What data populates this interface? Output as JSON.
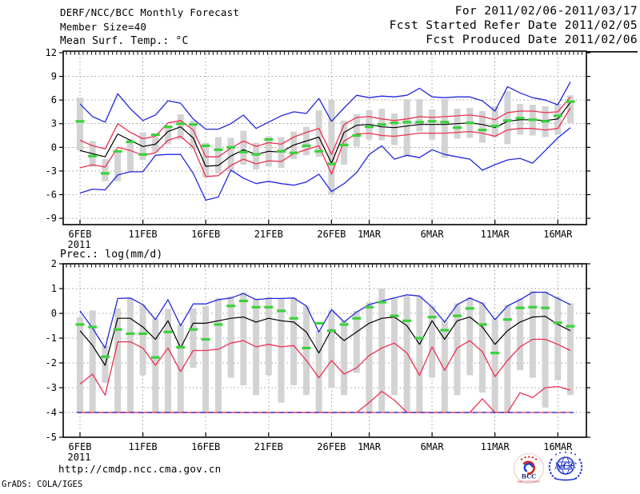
{
  "header": {
    "title": "DERF/NCC/BCC Monthly Forecast",
    "member_size": "Member Size=40",
    "for_range": "For 2011/02/06-2011/03/17",
    "fcst_started": "Fcst Started Refer Date 2011/02/05",
    "fcst_produced": "Fcst Produced Date 2011/02/06"
  },
  "footer": {
    "url": "http://cmdp.ncc.cma.gov.cn",
    "credit": "GrADS: COLA/IGES",
    "logo_left_text": "BCC",
    "logo_left_subtext": "BEIJING CLIMATE CENTER",
    "logo_right_text": "NCC"
  },
  "colors": {
    "blue": "#2228dd",
    "red": "#ec3150",
    "green": "#3bd23b",
    "black": "#000000",
    "bar": "#d3d3d3",
    "grid": "#9a9a9a",
    "frame": "#000000"
  },
  "chart_data": [
    {
      "id": "temp",
      "type": "line",
      "title": "Mean Surf. Temp.: °C",
      "ylabel": "°C",
      "n_points": 40,
      "x_range": "2011/02/06 - 2011/03/17",
      "x_ticks": [
        {
          "pos": 0,
          "label": "6FEB",
          "sub": "2011"
        },
        {
          "pos": 5,
          "label": "11FEB"
        },
        {
          "pos": 10,
          "label": "16FEB"
        },
        {
          "pos": 15,
          "label": "21FEB"
        },
        {
          "pos": 20,
          "label": "26FEB"
        },
        {
          "pos": 23,
          "label": "1MAR"
        },
        {
          "pos": 28,
          "label": "6MAR"
        },
        {
          "pos": 33,
          "label": "11MAR"
        },
        {
          "pos": 38,
          "label": "16MAR"
        }
      ],
      "ylim": [
        -9.8,
        12.2
      ],
      "yticks": [
        12,
        9,
        6,
        3,
        0,
        -3,
        -6,
        -9
      ],
      "grid": true,
      "legend": "none",
      "series": [
        {
          "id": "spread-bar",
          "name": "ensemble spread bar",
          "type": "bar",
          "color": "#d3d3d3",
          "hi": [
            6.3,
            0.8,
            -1.5,
            -0.5,
            1.0,
            1.9,
            1.3,
            2.8,
            4.2,
            3.4,
            0.6,
            1.3,
            1.2,
            2.1,
            0.6,
            1.4,
            1.3,
            2.0,
            2.6,
            4.7,
            6.0,
            3.4,
            4.2,
            4.7,
            4.9,
            4.3,
            6.1,
            6.1,
            4.8,
            6.1,
            4.9,
            5.0,
            4.6,
            5.2,
            7.1,
            5.5,
            5.4,
            5.2,
            5.5,
            6.6
          ],
          "lo": [
            -0.4,
            -2.5,
            -4.3,
            -4.3,
            -3.1,
            -1.6,
            -0.6,
            0.4,
            1.0,
            -0.2,
            -3.8,
            -3.3,
            -3.0,
            -2.2,
            -2.8,
            -2.4,
            -2.6,
            -1.5,
            -1.0,
            -1.2,
            -6.0,
            -2.2,
            0.1,
            1.0,
            0.9,
            0.3,
            -1.2,
            2.0,
            1.0,
            -1.3,
            1.1,
            1.2,
            0.6,
            1.3,
            0.4,
            1.6,
            1.5,
            1.3,
            1.6,
            3.1
          ]
        },
        {
          "id": "ens-max",
          "name": "ensemble max",
          "type": "line",
          "color": "#2228dd",
          "values": [
            5.5,
            3.9,
            3.2,
            6.8,
            4.9,
            3.4,
            4.1,
            5.9,
            5.6,
            3.6,
            2.3,
            2.3,
            3.0,
            4.1,
            2.4,
            3.2,
            4.0,
            4.5,
            4.3,
            6.2,
            3.3,
            5.0,
            6.6,
            6.3,
            6.5,
            6.4,
            6.6,
            7.5,
            6.4,
            6.3,
            6.4,
            6.4,
            5.9,
            4.6,
            7.7,
            6.9,
            6.3,
            6.0,
            5.4,
            8.3
          ]
        },
        {
          "id": "ens-min",
          "name": "ensemble min",
          "type": "line",
          "color": "#2228dd",
          "values": [
            -5.8,
            -5.3,
            -5.4,
            -3.5,
            -3.1,
            -3.1,
            -1.0,
            -0.9,
            -0.9,
            -3.3,
            -6.7,
            -6.3,
            -2.9,
            -3.9,
            -4.6,
            -4.3,
            -4.6,
            -4.8,
            -4.4,
            -3.4,
            -5.6,
            -4.6,
            -3.2,
            -0.9,
            0.2,
            -1.5,
            -1.0,
            -1.3,
            -0.3,
            -0.9,
            -1.2,
            -1.5,
            -2.9,
            -2.2,
            -1.6,
            -1.4,
            -2.0,
            -0.4,
            1.2,
            2.5
          ]
        },
        {
          "id": "upper-quartile",
          "name": "upper quartile",
          "type": "line",
          "color": "#ec3150",
          "values": [
            0.9,
            0.2,
            -0.2,
            3.0,
            1.9,
            1.1,
            1.4,
            3.1,
            3.4,
            2.2,
            -1.2,
            -1.2,
            -0.1,
            0.8,
            0.1,
            0.6,
            0.4,
            1.3,
            1.9,
            2.4,
            -0.9,
            2.9,
            3.8,
            3.9,
            3.6,
            3.4,
            3.6,
            3.9,
            3.8,
            3.9,
            4.0,
            4.1,
            3.9,
            3.5,
            4.4,
            4.6,
            4.6,
            4.4,
            4.5,
            6.4
          ]
        },
        {
          "id": "lower-quartile",
          "name": "lower quartile",
          "type": "line",
          "color": "#ec3150",
          "values": [
            -2.6,
            -2.2,
            -2.5,
            0.0,
            -0.4,
            -1.0,
            -0.7,
            0.9,
            1.4,
            0.0,
            -3.7,
            -3.6,
            -2.3,
            -1.5,
            -2.1,
            -1.7,
            -1.8,
            -0.8,
            -0.3,
            0.2,
            -3.4,
            0.8,
            1.7,
            1.8,
            1.5,
            1.4,
            1.6,
            1.8,
            1.8,
            1.8,
            1.9,
            2.0,
            1.8,
            1.4,
            2.2,
            2.4,
            2.4,
            2.2,
            2.4,
            5.0
          ]
        },
        {
          "id": "ens-mean",
          "name": "ensemble mean",
          "type": "line",
          "color": "#000000",
          "width": 1.2,
          "values": [
            -0.4,
            -0.8,
            -1.2,
            1.7,
            0.9,
            0.1,
            0.4,
            2.0,
            2.6,
            1.2,
            -2.4,
            -2.3,
            -1.1,
            -0.3,
            -0.9,
            -0.5,
            -0.6,
            0.3,
            0.8,
            1.3,
            -2.0,
            1.9,
            2.8,
            2.9,
            2.6,
            2.5,
            2.7,
            2.9,
            2.9,
            2.9,
            3.0,
            3.1,
            2.9,
            2.5,
            3.3,
            3.5,
            3.5,
            3.4,
            3.6,
            5.7
          ]
        },
        {
          "id": "obs",
          "name": "observation",
          "type": "dash",
          "color": "#3bd23b",
          "values": [
            3.3,
            -1.1,
            -3.3,
            -0.5,
            0.7,
            -0.9,
            1.6,
            2.6,
            3.0,
            2.9,
            0.2,
            -0.3,
            0.0,
            -0.6,
            -0.9,
            1.0,
            -0.5,
            -0.7,
            0.2,
            -0.5,
            -2.1,
            0.3,
            1.5,
            2.6,
            2.9,
            3.1,
            3.2,
            3.2,
            3.3,
            3.2,
            2.5,
            3.1,
            2.2,
            2.7,
            3.4,
            3.7,
            3.5,
            3.3,
            4.0,
            5.8
          ]
        }
      ]
    },
    {
      "id": "prec",
      "type": "line",
      "title": "Prec.: log(mm/d)",
      "ylabel": "log(mm/d)",
      "n_points": 40,
      "x_range": "2011/02/06 - 2011/03/17",
      "x_ticks": [
        {
          "pos": 0,
          "label": "6FEB",
          "sub": "2011"
        },
        {
          "pos": 5,
          "label": "11FEB"
        },
        {
          "pos": 10,
          "label": "16FEB"
        },
        {
          "pos": 15,
          "label": "21FEB"
        },
        {
          "pos": 20,
          "label": "26FEB"
        },
        {
          "pos": 23,
          "label": "1MAR"
        },
        {
          "pos": 28,
          "label": "6MAR"
        },
        {
          "pos": 33,
          "label": "11MAR"
        },
        {
          "pos": 38,
          "label": "16MAR"
        }
      ],
      "ylim": [
        -5,
        2
      ],
      "yticks": [
        2,
        1,
        0,
        -1,
        -2,
        -3,
        -4,
        -5
      ],
      "grid": true,
      "legend": "none",
      "series": [
        {
          "id": "spread-bar",
          "name": "ensemble spread bar",
          "type": "bar",
          "color": "#d3d3d3",
          "hi": [
            -0.15,
            0.12,
            -1.3,
            0.2,
            0.62,
            0.35,
            -0.2,
            0.18,
            -0.45,
            0.2,
            0.3,
            0.62,
            0.68,
            0.85,
            0.6,
            0.65,
            0.62,
            0.65,
            0.3,
            -0.7,
            0.12,
            -0.3,
            0.1,
            0.45,
            1.0,
            0.6,
            0.7,
            0.68,
            0.3,
            -0.3,
            0.4,
            0.65,
            0.45,
            -0.2,
            0.35,
            0.6,
            0.9,
            0.88,
            0.65,
            0.4
          ],
          "lo": [
            -4,
            -4,
            -2.8,
            -4,
            -4,
            -2.5,
            -4,
            -4,
            -4,
            -2.2,
            -4,
            -4,
            -2.6,
            -2.9,
            -3.3,
            -2.5,
            -3.6,
            -2.9,
            -3.3,
            -4,
            -3.0,
            -3.3,
            -2.4,
            -4,
            -4,
            -3.3,
            -4,
            -4,
            -2.6,
            -4,
            -3.3,
            -2.5,
            -3.2,
            -4,
            -4,
            -2.3,
            -2.6,
            -3.8,
            -2.7,
            -3.3
          ]
        },
        {
          "id": "min-floor",
          "name": "ensemble min (clipped at -4)",
          "type": "hline",
          "value": -4,
          "dashed": false,
          "color": "#ec3150"
        },
        {
          "id": "ens-max",
          "name": "ensemble max",
          "type": "line",
          "color": "#2228dd",
          "values": [
            0.1,
            -0.6,
            -1.4,
            0.6,
            0.62,
            0.35,
            -0.25,
            0.55,
            -0.5,
            0.38,
            0.38,
            0.55,
            0.62,
            0.8,
            0.55,
            0.6,
            0.6,
            0.62,
            0.3,
            -0.75,
            0.15,
            -0.35,
            0.05,
            0.35,
            0.5,
            0.62,
            0.75,
            0.7,
            0.25,
            -0.35,
            0.35,
            0.62,
            0.4,
            -0.25,
            0.3,
            0.55,
            0.85,
            0.85,
            0.6,
            0.35
          ]
        },
        {
          "id": "lower-quartile",
          "name": "lower quartile",
          "type": "line",
          "color": "#ec3150",
          "values": [
            -2.85,
            -2.45,
            -3.3,
            -1.15,
            -1.15,
            -1.4,
            -2.1,
            -1.4,
            -2.35,
            -1.5,
            -1.5,
            -1.45,
            -1.2,
            -1.1,
            -1.35,
            -1.25,
            -1.35,
            -1.3,
            -1.9,
            -2.6,
            -1.9,
            -2.45,
            -2.2,
            -1.7,
            -1.4,
            -1.2,
            -1.6,
            -2.5,
            -1.35,
            -2.3,
            -1.4,
            -1.1,
            -1.55,
            -2.55,
            -1.9,
            -1.35,
            -1.05,
            -1.05,
            -1.25,
            -1.5
          ]
        },
        {
          "id": "red-floor",
          "name": "ensemble 10th pct (clipped at -4)",
          "type": "line",
          "color": "#ec3150",
          "values": [
            -4,
            -4,
            -4,
            -4,
            -4,
            -4,
            -4,
            -4,
            -4,
            -4,
            -4,
            -4,
            -4,
            -4,
            -4,
            -4,
            -4,
            -4,
            -4,
            -4,
            -4,
            -4,
            -4,
            -3.6,
            -3.15,
            -3.5,
            -4,
            -4,
            -4,
            -4,
            -4,
            -4,
            -3.45,
            -4,
            -4,
            -3.2,
            -3.4,
            -3.0,
            -2.95,
            -3.1
          ]
        },
        {
          "id": "blue-floor",
          "name": "ensemble min dashes at -4",
          "type": "hline",
          "value": -4,
          "dashed": true,
          "color": "#2228dd"
        },
        {
          "id": "ens-mean",
          "name": "ensemble mean",
          "type": "line",
          "color": "#000000",
          "width": 1.2,
          "values": [
            -0.7,
            -1.3,
            -2.1,
            -0.2,
            -0.2,
            -0.55,
            -1.05,
            -0.3,
            -1.4,
            -0.4,
            -0.4,
            -0.3,
            -0.2,
            -0.15,
            -0.35,
            -0.2,
            -0.3,
            -0.35,
            -0.75,
            -1.6,
            -0.65,
            -1.1,
            -0.75,
            -0.4,
            -0.2,
            -0.15,
            -0.5,
            -1.25,
            -0.3,
            -1.05,
            -0.3,
            -0.15,
            -0.55,
            -1.25,
            -0.7,
            -0.35,
            -0.15,
            -0.12,
            -0.45,
            -0.7
          ]
        },
        {
          "id": "obs",
          "name": "observation",
          "type": "dash",
          "color": "#3bd23b",
          "values": [
            -0.45,
            -0.55,
            -1.75,
            -0.65,
            -0.82,
            -0.82,
            -1.78,
            -0.75,
            -1.37,
            -0.65,
            -1.05,
            -0.45,
            0.3,
            0.5,
            0.25,
            0.25,
            0.1,
            -0.2,
            -1.4,
            -0.4,
            -0.7,
            -0.45,
            -0.2,
            0.25,
            0.45,
            -0.1,
            -0.3,
            -1.0,
            -0.15,
            -0.68,
            -0.1,
            0.2,
            -0.45,
            -1.6,
            -0.25,
            0.22,
            0.25,
            0.22,
            -0.38,
            -0.52
          ]
        }
      ]
    }
  ]
}
